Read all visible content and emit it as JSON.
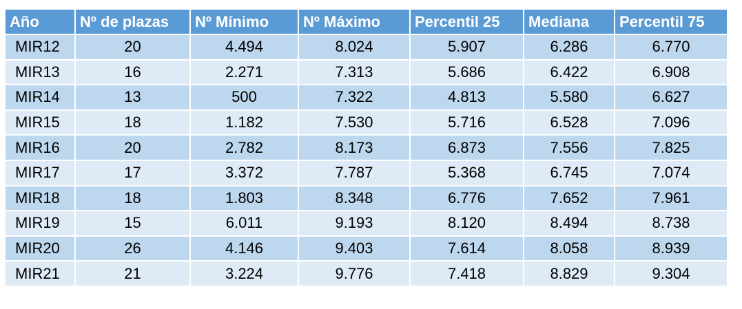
{
  "table": {
    "headers": [
      "Año",
      "Nº de plazas",
      "Nº Mínimo",
      "Nº Máximo",
      "Percentil 25",
      "Mediana",
      "Percentil 75"
    ],
    "rows": [
      [
        "MIR12",
        "20",
        "4.494",
        "8.024",
        "5.907",
        "6.286",
        "6.770"
      ],
      [
        "MIR13",
        "16",
        "2.271",
        "7.313",
        "5.686",
        "6.422",
        "6.908"
      ],
      [
        "MIR14",
        "13",
        "500",
        "7.322",
        "4.813",
        "5.580",
        "6.627"
      ],
      [
        "MIR15",
        "18",
        "1.182",
        "7.530",
        "5.716",
        "6.528",
        "7.096"
      ],
      [
        "MIR16",
        "20",
        "2.782",
        "8.173",
        "6.873",
        "7.556",
        "7.825"
      ],
      [
        "MIR17",
        "17",
        "3.372",
        "7.787",
        "5.368",
        "6.745",
        "7.074"
      ],
      [
        "MIR18",
        "18",
        "1.803",
        "8.348",
        "6.776",
        "7.652",
        "7.961"
      ],
      [
        "MIR19",
        "15",
        "6.011",
        "9.193",
        "8.120",
        "8.494",
        "8.738"
      ],
      [
        "MIR20",
        "26",
        "4.146",
        "9.403",
        "7.614",
        "8.058",
        "8.939"
      ],
      [
        "MIR21",
        "21",
        "3.224",
        "9.776",
        "7.418",
        "8.829",
        "9.304"
      ]
    ]
  },
  "colors": {
    "header_bg": "#5b9bd5",
    "header_text": "#ffffff",
    "row_dark": "#bdd7ee",
    "row_light": "#deebf7"
  }
}
